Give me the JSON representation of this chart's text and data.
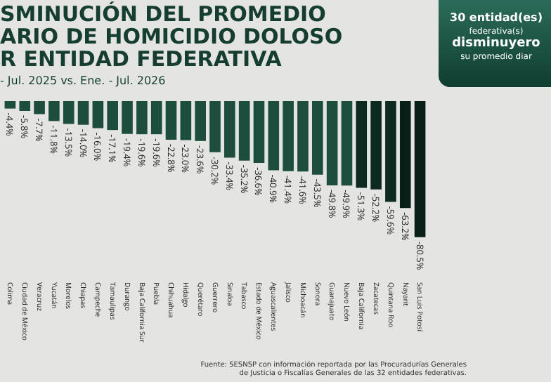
{
  "chart_data": {
    "type": "bar",
    "title": "SMINUCIÓN DEL PROMEDIO\nARIO DE HOMICIDIO DOLOSO\nR ENTIDAD FEDERATIVA",
    "subtitle": "- Jul. 2025 vs. Ene. - Jul. 2026",
    "categories": [
      "Colima",
      "Ciudad de México",
      "Veracruz",
      "Yucatán",
      "Morelos",
      "Chiapas",
      "Campeche",
      "Tamaulipas",
      "Durango",
      "Baja California Sur",
      "Puebla",
      "Chihuahua",
      "Hidalgo",
      "Querétaro",
      "Guerrero",
      "Sinaloa",
      "Tabasco",
      "Estado de México",
      "Aguascalientes",
      "Jalisco",
      "Michoacán",
      "Sonora",
      "Guanajuato",
      "Nuevo León",
      "Baja California",
      "Zacatecas",
      "Quintana Roo",
      "Nayarit",
      "San Luis Potosí"
    ],
    "values": [
      -4.4,
      -5.8,
      -7.7,
      -11.8,
      -13.5,
      -14.0,
      -16.0,
      -17.1,
      -19.4,
      -19.6,
      -19.6,
      -22.8,
      -23.0,
      -23.6,
      -30.2,
      -33.4,
      -35.2,
      -36.6,
      -40.9,
      -41.4,
      -41.6,
      -43.5,
      -49.8,
      -49.9,
      -51.3,
      -52.2,
      -59.6,
      -63.2,
      -80.5
    ],
    "value_labels": [
      "-4.4%",
      "-5.8%",
      "-7.7%",
      "-11.8%",
      "-13.5%",
      "-14.0%",
      "-16.0%",
      "-17.1%",
      "-19.4%",
      "-19.6%",
      "-19.6%",
      "-22.8%",
      "-23.0%",
      "-23.6%",
      "-30.2%",
      "-33.4%",
      "-35.2%",
      "-36.6%",
      "-40.9%",
      "-41.4%",
      "-41.6%",
      "-43.5%",
      "-49.8%",
      "-49.9%",
      "-51.3%",
      "-52.2%",
      "-59.6%",
      "-63.2%",
      "-80.5%"
    ],
    "colors": [
      "#1d4d3c",
      "#1d4d3c",
      "#1d4d3c",
      "#1d4d3c",
      "#1d4d3c",
      "#1d4d3c",
      "#1d4d3c",
      "#1d4d3c",
      "#1d4d3c",
      "#1d4d3c",
      "#1d4d3c",
      "#1d4d3c",
      "#1d4d3c",
      "#1d4d3c",
      "#1d4d3c",
      "#1d4d3c",
      "#1d4d3c",
      "#1d4d3c",
      "#1d4d3c",
      "#1d4d3c",
      "#1d4d3c",
      "#1d4d3c",
      "#1d4d3c",
      "#1d4d3c",
      "#0c2a20",
      "#0c2a20",
      "#0c2a20",
      "#081f17",
      "#081f17"
    ],
    "tick_labels": "x",
    "grid": false,
    "annotations": [
      "30 entidad(es)\nfederativa(s)\ndisminuyero\nsu promedio diar",
      "Fuente: SESNSP con información reportada por las Procuradurías Generales\nde Justicia o Fiscalías Generales de las 32 entidades federativas."
    ]
  }
}
